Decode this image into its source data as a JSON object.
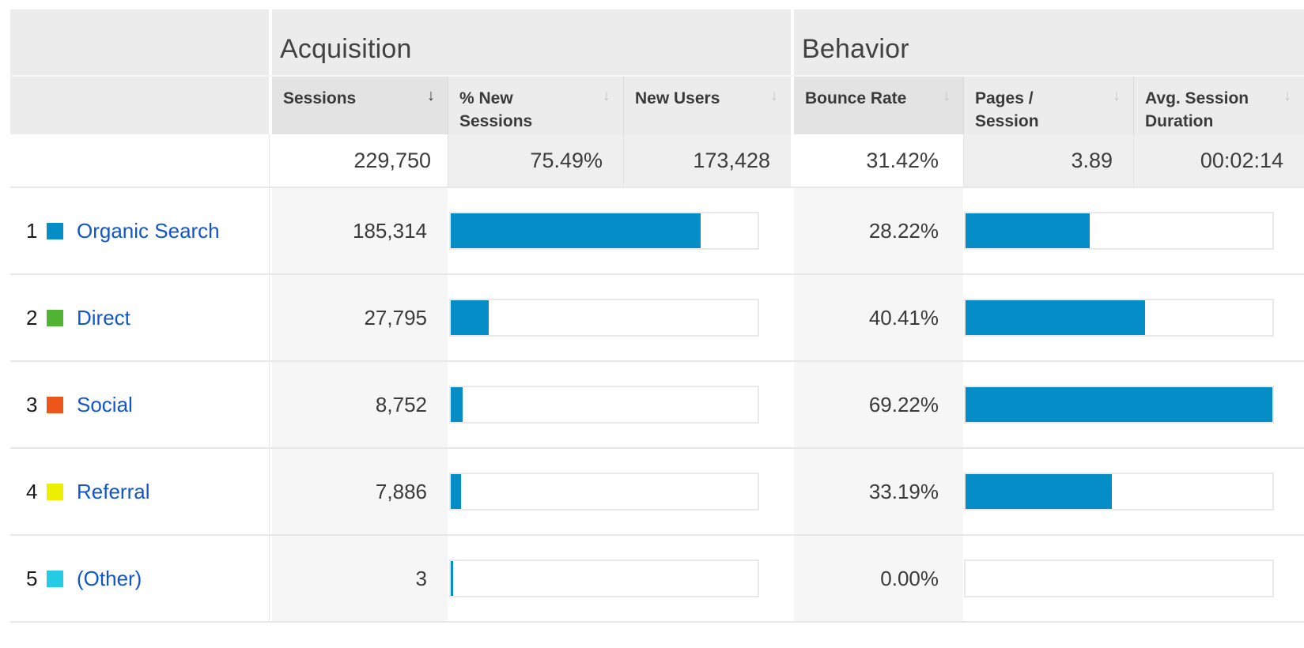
{
  "colors": {
    "bar": "#058dc7",
    "link": "#1155cc"
  },
  "groups": {
    "acquisition": "Acquisition",
    "behavior": "Behavior"
  },
  "columns": {
    "sessions": {
      "label": "Sessions",
      "sorted": true,
      "sort_icon": "↓"
    },
    "pct_new_sessions": {
      "label": "% New Sessions",
      "sort_icon": "↓"
    },
    "new_users": {
      "label": "New Users",
      "sort_icon": "↓"
    },
    "bounce_rate": {
      "label": "Bounce Rate",
      "sort_icon": "↓"
    },
    "pages_per_session": {
      "label": "Pages / Session",
      "sort_icon": "↓"
    },
    "avg_session_duration": {
      "label": "Avg. Session Duration",
      "sort_icon": "↓"
    }
  },
  "summary": {
    "sessions": "229,750",
    "pct_new_sessions": "75.49%",
    "new_users": "173,428",
    "bounce_rate": "31.42%",
    "pages_per_session": "3.89",
    "avg_session_duration": "00:02:14"
  },
  "rows": [
    {
      "rank": "1",
      "label": "Organic Search",
      "swatch_color": "#058dc7",
      "sessions": "185,314",
      "sessions_bar_pct": 81.5,
      "bounce_rate": "28.22%",
      "bounce_bar_pct": 40.5
    },
    {
      "rank": "2",
      "label": "Direct",
      "swatch_color": "#50b432",
      "sessions": "27,795",
      "sessions_bar_pct": 12.4,
      "bounce_rate": "40.41%",
      "bounce_bar_pct": 58.5
    },
    {
      "rank": "3",
      "label": "Social",
      "swatch_color": "#ed561b",
      "sessions": "8,752",
      "sessions_bar_pct": 3.9,
      "bounce_rate": "69.22%",
      "bounce_bar_pct": 100
    },
    {
      "rank": "4",
      "label": "Referral",
      "swatch_color": "#edef00",
      "sessions": "7,886",
      "sessions_bar_pct": 3.4,
      "bounce_rate": "33.19%",
      "bounce_bar_pct": 47.7
    },
    {
      "rank": "5",
      "label": "(Other)",
      "swatch_color": "#24cbe5",
      "sessions": "3",
      "sessions_bar_pct": 0.8,
      "bounce_rate": "0.00%",
      "bounce_bar_pct": 0
    }
  ]
}
